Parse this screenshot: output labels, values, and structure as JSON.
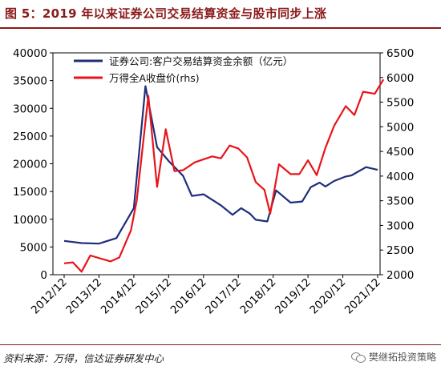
{
  "header": {
    "title": "图 5：2019 年以来证券公司交易结算资金与股市同步上涨"
  },
  "footer": {
    "source": "资料来源：万得，信达证券研发中心",
    "watermark": "樊继拓投资策略"
  },
  "icons": {
    "watermark": "wechat-icon"
  },
  "colors": {
    "title": "#8b1a1a",
    "series_blue": "#1f2d7a",
    "series_red": "#e8141a"
  },
  "chart_data": {
    "type": "line",
    "title": "",
    "legend_position": "top",
    "grid": false,
    "x_ticks": [
      "2012/12",
      "2013/12",
      "2014/12",
      "2015/12",
      "2016/12",
      "2017/12",
      "2018/12",
      "2019/12",
      "2020/12",
      "2021/12"
    ],
    "y_left": {
      "min": 0,
      "max": 40000,
      "ticks": [
        "0",
        "5000",
        "10000",
        "15000",
        "20000",
        "25000",
        "30000",
        "35000",
        "40000"
      ]
    },
    "y_right": {
      "min": 2000,
      "max": 6500,
      "ticks": [
        "2000",
        "2500",
        "3000",
        "3500",
        "4000",
        "4500",
        "5000",
        "5500",
        "6000",
        "6500"
      ]
    },
    "series": [
      {
        "name": "证券公司:客户交易结算资金余额（亿元）",
        "axis": "left",
        "color": "#1f2d7a",
        "points": [
          [
            "2012/12",
            6100
          ],
          [
            "2013/06",
            5700
          ],
          [
            "2013/12",
            5600
          ],
          [
            "2014/06",
            6600
          ],
          [
            "2014/12",
            12000
          ],
          [
            "2015/04",
            34000
          ],
          [
            "2015/08",
            23000
          ],
          [
            "2015/12",
            20500
          ],
          [
            "2016/05",
            17800
          ],
          [
            "2016/08",
            14200
          ],
          [
            "2016/12",
            14500
          ],
          [
            "2017/06",
            12500
          ],
          [
            "2017/10",
            10800
          ],
          [
            "2018/01",
            12000
          ],
          [
            "2018/04",
            11000
          ],
          [
            "2018/06",
            9900
          ],
          [
            "2018/10",
            9600
          ],
          [
            "2019/01",
            15200
          ],
          [
            "2019/06",
            13000
          ],
          [
            "2019/10",
            13200
          ],
          [
            "2020/01",
            15800
          ],
          [
            "2020/04",
            16600
          ],
          [
            "2020/06",
            15900
          ],
          [
            "2020/09",
            16900
          ],
          [
            "2021/01",
            17700
          ],
          [
            "2021/03",
            17900
          ],
          [
            "2021/08",
            19400
          ],
          [
            "2021/12",
            18900
          ]
        ]
      },
      {
        "name": "万得全A收盘价(rhs)",
        "axis": "right",
        "color": "#e8141a",
        "points": [
          [
            "2012/12",
            2230
          ],
          [
            "2013/03",
            2250
          ],
          [
            "2013/06",
            2060
          ],
          [
            "2013/09",
            2390
          ],
          [
            "2014/01",
            2320
          ],
          [
            "2014/04",
            2270
          ],
          [
            "2014/07",
            2350
          ],
          [
            "2014/11",
            2900
          ],
          [
            "2015/01",
            3500
          ],
          [
            "2015/05",
            5630
          ],
          [
            "2015/08",
            3780
          ],
          [
            "2015/11",
            4950
          ],
          [
            "2016/02",
            4100
          ],
          [
            "2016/05",
            4120
          ],
          [
            "2016/09",
            4280
          ],
          [
            "2017/03",
            4400
          ],
          [
            "2017/06",
            4360
          ],
          [
            "2017/09",
            4620
          ],
          [
            "2017/12",
            4560
          ],
          [
            "2018/03",
            4380
          ],
          [
            "2018/06",
            3880
          ],
          [
            "2018/09",
            3720
          ],
          [
            "2018/11",
            3240
          ],
          [
            "2019/02",
            4240
          ],
          [
            "2019/06",
            4040
          ],
          [
            "2019/09",
            4040
          ],
          [
            "2019/12",
            4320
          ],
          [
            "2020/03",
            4020
          ],
          [
            "2020/06",
            4570
          ],
          [
            "2020/09",
            5020
          ],
          [
            "2021/01",
            5420
          ],
          [
            "2021/04",
            5240
          ],
          [
            "2021/07",
            5710
          ],
          [
            "2021/11",
            5670
          ],
          [
            "2022/02",
            5960
          ]
        ]
      }
    ]
  }
}
